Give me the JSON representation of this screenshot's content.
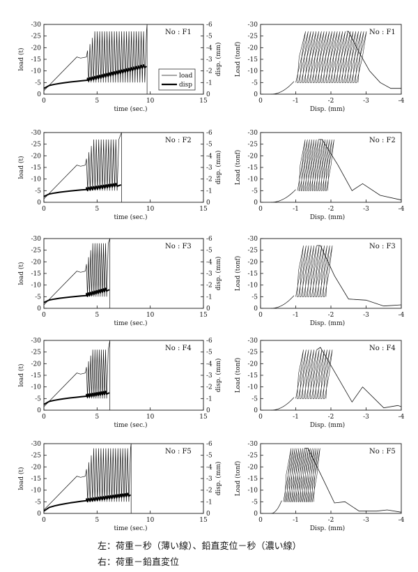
{
  "caption": {
    "line1": "左：荷重－秒（薄い線）、鉛直変位－秒（濃い線）",
    "line2": "右：荷重－鉛直変位"
  },
  "chart_data": {
    "type": "line",
    "rows": [
      {
        "specimen": "No : F1",
        "time_chart": {
          "xlabel": "time (sec.)",
          "ylabel_left": "load (t)",
          "ylabel_right": "disp. (mm)",
          "xticks": [
            "0",
            "5",
            "10",
            "15"
          ],
          "yticks_left": [
            "0",
            "-5",
            "-10",
            "-15",
            "-20",
            "-25",
            "-30"
          ],
          "yticks_right": [
            "0",
            "-1",
            "-2",
            "-3",
            "-4",
            "-5",
            "-6"
          ],
          "xlim": [
            0,
            15
          ],
          "ylim_left": [
            0,
            -30
          ],
          "ylim_right": [
            0,
            -6
          ],
          "legend": [
            "load",
            "disp"
          ],
          "ramp_end_time": 3.1,
          "ramp_end_load": -16,
          "cycle_start": 4.1,
          "cycle_end": 9.6,
          "cycle_load_min": -5,
          "cycle_load_max": -27,
          "cycles": 24,
          "end_time": 9.7,
          "disp_start": -0.5,
          "disp_at_cycle": -1.2,
          "disp_end": -2.4
        },
        "hyst_chart": {
          "xlabel": "Disp. (mm)",
          "ylabel": "Load (tonf)",
          "xticks": [
            "0",
            "-1",
            "-2",
            "-3",
            "-4"
          ],
          "yticks": [
            "0",
            "-5",
            "-10",
            "-15",
            "-20",
            "-25",
            "-30"
          ],
          "xlim": [
            0,
            -4
          ],
          "ylim": [
            0,
            -30
          ],
          "loop_disp_start": -1.0,
          "loop_disp_end": -2.45,
          "loop_width": 0.28,
          "loops": 24,
          "load_min": -5,
          "load_max": -27,
          "peak_disp": -2.5,
          "peak_load": -27,
          "post_peak": [
            [
              -2.5,
              -27
            ],
            [
              -2.8,
              -18
            ],
            [
              -3.1,
              -10
            ],
            [
              -3.4,
              -5
            ],
            [
              -3.7,
              -2.5
            ],
            [
              -4.0,
              -2.5
            ]
          ]
        }
      },
      {
        "specimen": "No : F2",
        "time_chart": {
          "xlabel": "time (sec.)",
          "ylabel_left": "load (t)",
          "ylabel_right": "disp. (mm)",
          "xticks": [
            "0",
            "5",
            "10",
            "15"
          ],
          "yticks_left": [
            "0",
            "-5",
            "-10",
            "-15",
            "-20",
            "-25",
            "-30"
          ],
          "yticks_right": [
            "0",
            "-1",
            "-2",
            "-3",
            "-4",
            "-5",
            "-6"
          ],
          "xlim": [
            0,
            15
          ],
          "ylim_left": [
            0,
            -30
          ],
          "ylim_right": [
            0,
            -6
          ],
          "legend": [],
          "ramp_end_time": 3.1,
          "ramp_end_load": -16,
          "cycle_start": 4.0,
          "cycle_end": 7.0,
          "cycle_load_min": -5,
          "cycle_load_max": -27,
          "cycles": 13,
          "end_time": 7.3,
          "disp_start": -0.5,
          "disp_at_cycle": -1.1,
          "disp_end": -1.5
        },
        "hyst_chart": {
          "xlabel": "Disp. (mm)",
          "ylabel": "Load (tonf)",
          "xticks": [
            "0",
            "-1",
            "-2",
            "-3",
            "-4"
          ],
          "yticks": [
            "0",
            "-5",
            "-10",
            "-15",
            "-20",
            "-25",
            "-30"
          ],
          "xlim": [
            0,
            -4
          ],
          "ylim": [
            0,
            -30
          ],
          "loop_disp_start": -1.05,
          "loop_disp_end": -1.65,
          "loop_width": 0.22,
          "loops": 14,
          "load_min": -5,
          "load_max": -27,
          "peak_disp": -1.75,
          "peak_load": -27,
          "post_peak": [
            [
              -1.75,
              -27
            ],
            [
              -2.2,
              -16
            ],
            [
              -2.6,
              -5
            ],
            [
              -2.9,
              -8
            ],
            [
              -3.4,
              -3
            ],
            [
              -4.0,
              -1
            ]
          ]
        }
      },
      {
        "specimen": "No : F3",
        "time_chart": {
          "xlabel": "time (sec.)",
          "ylabel_left": "load (t)",
          "ylabel_right": "disp. (mm)",
          "xticks": [
            "0",
            "5",
            "10",
            "15"
          ],
          "yticks_left": [
            "0",
            "-5",
            "-10",
            "-15",
            "-20",
            "-25",
            "-30"
          ],
          "yticks_right": [
            "0",
            "-1",
            "-2",
            "-3",
            "-4",
            "-5",
            "-6"
          ],
          "xlim": [
            0,
            15
          ],
          "ylim_left": [
            0,
            -30
          ],
          "ylim_right": [
            0,
            -6
          ],
          "legend": [],
          "ramp_end_time": 3.1,
          "ramp_end_load": -16,
          "cycle_start": 4.0,
          "cycle_end": 6.0,
          "cycle_load_min": -5,
          "cycle_load_max": -28,
          "cycles": 10,
          "end_time": 6.2,
          "disp_start": -0.5,
          "disp_at_cycle": -1.1,
          "disp_end": -1.6
        },
        "hyst_chart": {
          "xlabel": "Disp. (mm)",
          "ylabel": "Load (tonf)",
          "xticks": [
            "0",
            "-1",
            "-2",
            "-3",
            "-4"
          ],
          "yticks": [
            "0",
            "-5",
            "-10",
            "-15",
            "-20",
            "-25",
            "-30"
          ],
          "xlim": [
            0,
            -4
          ],
          "ylim": [
            0,
            -30
          ],
          "loop_disp_start": -1.0,
          "loop_disp_end": -1.6,
          "loop_width": 0.22,
          "loops": 12,
          "load_min": -5,
          "load_max": -27,
          "peak_disp": -1.7,
          "peak_load": -27,
          "post_peak": [
            [
              -1.7,
              -27
            ],
            [
              -2.1,
              -14
            ],
            [
              -2.5,
              -4
            ],
            [
              -3.0,
              -3.5
            ],
            [
              -3.5,
              -1
            ],
            [
              -4.0,
              -1.5
            ]
          ]
        }
      },
      {
        "specimen": "No : F4",
        "time_chart": {
          "xlabel": "time (sec.)",
          "ylabel_left": "load (t)",
          "ylabel_right": "disp. (mm)",
          "xticks": [
            "0",
            "5",
            "10",
            "15"
          ],
          "yticks_left": [
            "0",
            "-5",
            "-10",
            "-15",
            "-20",
            "-25",
            "-30"
          ],
          "yticks_right": [
            "0",
            "-1",
            "-2",
            "-3",
            "-4",
            "-5",
            "-6"
          ],
          "xlim": [
            0,
            15
          ],
          "ylim_left": [
            0,
            -30
          ],
          "ylim_right": [
            0,
            -6
          ],
          "legend": [],
          "ramp_end_time": 3.1,
          "ramp_end_load": -16,
          "cycle_start": 4.0,
          "cycle_end": 6.0,
          "cycle_load_min": -5,
          "cycle_load_max": -26,
          "cycles": 10,
          "end_time": 6.2,
          "disp_start": -0.5,
          "disp_at_cycle": -1.2,
          "disp_end": -1.5
        },
        "hyst_chart": {
          "xlabel": "Disp. (mm)",
          "ylabel": "Load (tonf)",
          "xticks": [
            "0",
            "-1",
            "-2",
            "-3",
            "-4"
          ],
          "yticks": [
            "0",
            "-5",
            "-10",
            "-15",
            "-20",
            "-25",
            "-30"
          ],
          "xlim": [
            0,
            -4
          ],
          "ylim": [
            0,
            -30
          ],
          "loop_disp_start": -1.0,
          "loop_disp_end": -1.6,
          "loop_width": 0.22,
          "loops": 12,
          "load_min": -5,
          "load_max": -26,
          "peak_disp": -1.7,
          "peak_load": -27,
          "post_peak": [
            [
              -1.7,
              -27
            ],
            [
              -2.2,
              -14
            ],
            [
              -2.6,
              -3.5
            ],
            [
              -2.9,
              -10
            ],
            [
              -3.5,
              -1
            ],
            [
              -3.9,
              -2
            ],
            [
              -4.0,
              -1.5
            ]
          ]
        }
      },
      {
        "specimen": "No : F5",
        "time_chart": {
          "xlabel": "time (sec.)",
          "ylabel_left": "load (t)",
          "ylabel_right": "disp. (mm)",
          "xticks": [
            "0",
            "5",
            "10",
            "15"
          ],
          "yticks_left": [
            "0",
            "-5",
            "-10",
            "-15",
            "-20",
            "-25",
            "-30"
          ],
          "yticks_right": [
            "0",
            "-1",
            "-2",
            "-3",
            "-4",
            "-5",
            "-6"
          ],
          "xlim": [
            0,
            15
          ],
          "ylim_left": [
            0,
            -30
          ],
          "ylim_right": [
            0,
            -6
          ],
          "legend": [],
          "ramp_end_time": 3.1,
          "ramp_end_load": -16,
          "cycle_start": 4.0,
          "cycle_end": 8.1,
          "cycle_load_min": -5,
          "cycle_load_max": -28,
          "cycles": 18,
          "end_time": 8.2,
          "disp_start": -0.2,
          "disp_at_cycle": -1.1,
          "disp_end": -1.6
        },
        "hyst_chart": {
          "xlabel": "Disp. (mm)",
          "ylabel": "Load (tonf)",
          "xticks": [
            "0",
            "-1",
            "-2",
            "-3",
            "-4"
          ],
          "yticks": [
            "0",
            "-5",
            "-10",
            "-15",
            "-20",
            "-25",
            "-30"
          ],
          "xlim": [
            0,
            -4
          ],
          "ylim": [
            0,
            -30
          ],
          "loop_disp_start": -0.65,
          "loop_disp_end": -1.25,
          "loop_width": 0.22,
          "loops": 16,
          "load_min": -5,
          "load_max": -28,
          "peak_disp": -1.35,
          "peak_load": -28,
          "post_peak": [
            [
              -1.35,
              -28
            ],
            [
              -1.8,
              -14
            ],
            [
              -2.1,
              -4.5
            ],
            [
              -2.4,
              -5
            ],
            [
              -2.8,
              -1
            ],
            [
              -3.3,
              -1
            ],
            [
              -3.6,
              -1.5
            ],
            [
              -4.0,
              -0.5
            ]
          ]
        }
      }
    ]
  }
}
